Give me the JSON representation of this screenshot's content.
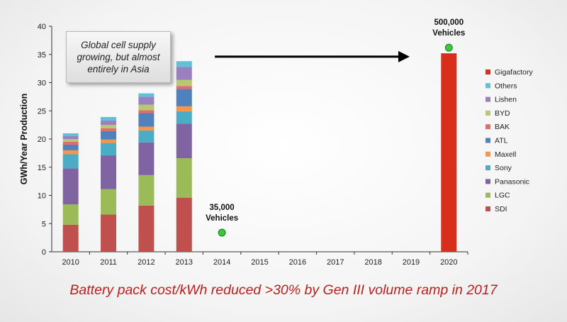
{
  "chart_data": {
    "type": "bar",
    "stacked": true,
    "ylabel": "GWh/Year Production",
    "ylim": [
      0,
      40
    ],
    "yticks": [
      0,
      5,
      10,
      15,
      20,
      25,
      30,
      35,
      40
    ],
    "categories": [
      "2010",
      "2011",
      "2012",
      "2013",
      "2014",
      "2015",
      "2016",
      "2017",
      "2018",
      "2019",
      "2020"
    ],
    "series": [
      {
        "name": "SDI",
        "color": "#c0504d",
        "values": [
          4.8,
          6.6,
          8.2,
          9.6,
          0,
          0,
          0,
          0,
          0,
          0,
          0
        ]
      },
      {
        "name": "LGC",
        "color": "#9bbb59",
        "values": [
          3.6,
          4.5,
          5.4,
          7.0,
          0,
          0,
          0,
          0,
          0,
          0,
          0
        ]
      },
      {
        "name": "Panasonic",
        "color": "#8064a2",
        "values": [
          6.4,
          6.0,
          5.8,
          6.1,
          0,
          0,
          0,
          0,
          0,
          0,
          0
        ]
      },
      {
        "name": "Sony",
        "color": "#4bacc6",
        "values": [
          2.5,
          2.2,
          2.1,
          2.2,
          0,
          0,
          0,
          0,
          0,
          0,
          0
        ]
      },
      {
        "name": "Maxell",
        "color": "#f79646",
        "values": [
          0.7,
          0.6,
          0.7,
          0.9,
          0,
          0,
          0,
          0,
          0,
          0,
          0
        ]
      },
      {
        "name": "ATL",
        "color": "#4f81bd",
        "values": [
          1.0,
          1.5,
          2.4,
          3.1,
          0,
          0,
          0,
          0,
          0,
          0,
          0
        ]
      },
      {
        "name": "BAK",
        "color": "#e46b6b",
        "values": [
          0.5,
          0.5,
          0.5,
          0.5,
          0,
          0,
          0,
          0,
          0,
          0,
          0
        ]
      },
      {
        "name": "BYD",
        "color": "#b5c96e",
        "values": [
          0.5,
          0.6,
          1.0,
          1.1,
          0,
          0,
          0,
          0,
          0,
          0,
          0
        ]
      },
      {
        "name": "Lishen",
        "color": "#9b80c0",
        "values": [
          0.5,
          0.8,
          1.4,
          2.3,
          0,
          0,
          0,
          0,
          0,
          0,
          0
        ]
      },
      {
        "name": "Others",
        "color": "#5fc0d8",
        "values": [
          0.5,
          0.6,
          0.6,
          1.0,
          0,
          0,
          0,
          0,
          0,
          0,
          0
        ]
      },
      {
        "name": "Gigafactory",
        "color": "#d82e1c",
        "values": [
          0,
          0,
          0,
          0,
          0,
          0,
          0,
          0,
          0,
          0,
          35.2
        ]
      }
    ],
    "markers": [
      {
        "x": "2014",
        "y": 3.4,
        "color": "#3cc83c",
        "label_line1": "35,000",
        "label_line2": "Vehicles"
      },
      {
        "x": "2020",
        "y": 36.2,
        "color": "#3cc83c",
        "label_line1": "500,000",
        "label_line2": "Vehicles"
      }
    ],
    "arrow": {
      "from_x": "2014",
      "to_x": "2019",
      "y": 34.6
    },
    "legend_position": "right",
    "grid": false
  },
  "callout": {
    "text": "Global cell supply growing, but almost entirely in Asia"
  },
  "caption": "Battery pack cost/kWh reduced >30% by Gen III volume ramp in 2017"
}
